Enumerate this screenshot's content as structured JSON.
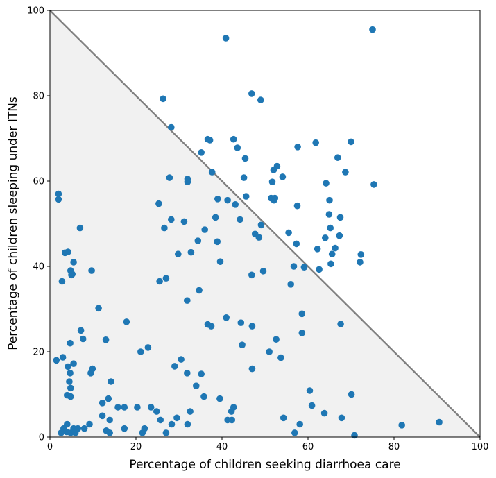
{
  "chart_data": {
    "type": "scatter",
    "title": "",
    "xlabel": "Percentage of children seeking diarrhoea care",
    "ylabel": "Percentage of children sleeping under ITNs",
    "xlim": [
      0,
      100
    ],
    "ylim": [
      0,
      100
    ],
    "xticks": [
      "0",
      "20",
      "40",
      "60",
      "80",
      "100"
    ],
    "yticks": [
      "0",
      "20",
      "40",
      "60",
      "80",
      "100"
    ],
    "grid": false,
    "legend": "none",
    "reference_line": {
      "from": [
        0,
        100
      ],
      "to": [
        100,
        0
      ],
      "color": "#808080"
    },
    "shaded_region": {
      "vertices": [
        [
          0,
          0
        ],
        [
          0,
          100
        ],
        [
          100,
          0
        ]
      ],
      "color": "#f1f1f1"
    },
    "marker_color": "#1f77b4",
    "points": [
      [
        1.5,
        18
      ],
      [
        2,
        57
      ],
      [
        2,
        55.7
      ],
      [
        2.6,
        1
      ],
      [
        2.8,
        36.5
      ],
      [
        3,
        18.7
      ],
      [
        3.2,
        2
      ],
      [
        3.5,
        43.2
      ],
      [
        3.9,
        1.2
      ],
      [
        4,
        3
      ],
      [
        4,
        9.8
      ],
      [
        4.2,
        16.5
      ],
      [
        4.2,
        43.4
      ],
      [
        4.5,
        13
      ],
      [
        4.7,
        22
      ],
      [
        4.7,
        15
      ],
      [
        4.8,
        11.5
      ],
      [
        4.8,
        9.5
      ],
      [
        4.8,
        1
      ],
      [
        4.8,
        39
      ],
      [
        5,
        38
      ],
      [
        5.2,
        38.2
      ],
      [
        5.5,
        41
      ],
      [
        5.5,
        17.2
      ],
      [
        5.5,
        2
      ],
      [
        5.9,
        1
      ],
      [
        6,
        1.5
      ],
      [
        6.5,
        2
      ],
      [
        7,
        49
      ],
      [
        7.2,
        25
      ],
      [
        7.7,
        23
      ],
      [
        8,
        2
      ],
      [
        9.2,
        3
      ],
      [
        9.5,
        15
      ],
      [
        9.7,
        39
      ],
      [
        9.9,
        16
      ],
      [
        11.3,
        30.2
      ],
      [
        12.2,
        5
      ],
      [
        12.2,
        8
      ],
      [
        13,
        22.8
      ],
      [
        13.1,
        1.5
      ],
      [
        13.6,
        9
      ],
      [
        13.9,
        4
      ],
      [
        13.9,
        1
      ],
      [
        14.2,
        13
      ],
      [
        15.8,
        7
      ],
      [
        17.3,
        2
      ],
      [
        17.3,
        7
      ],
      [
        17.8,
        27
      ],
      [
        20.3,
        7
      ],
      [
        21.1,
        20
      ],
      [
        21.5,
        1
      ],
      [
        22,
        2
      ],
      [
        22.8,
        21
      ],
      [
        23.5,
        7
      ],
      [
        24.8,
        6
      ],
      [
        25.3,
        54.7
      ],
      [
        25.5,
        36.5
      ],
      [
        25.7,
        4
      ],
      [
        26.3,
        79.3
      ],
      [
        26.6,
        49
      ],
      [
        27,
        37.2
      ],
      [
        27,
        1
      ],
      [
        27.8,
        60.8
      ],
      [
        28.2,
        72.6
      ],
      [
        28.2,
        51
      ],
      [
        28.3,
        3
      ],
      [
        29,
        16.6
      ],
      [
        29.5,
        4.5
      ],
      [
        29.8,
        42.9
      ],
      [
        30.5,
        18.2
      ],
      [
        31.2,
        50.5
      ],
      [
        31.9,
        32
      ],
      [
        31.9,
        15
      ],
      [
        32,
        3
      ],
      [
        32,
        60.5
      ],
      [
        32,
        59.8
      ],
      [
        32.6,
        6
      ],
      [
        32.8,
        43.3
      ],
      [
        34,
        12
      ],
      [
        34.4,
        46
      ],
      [
        34.7,
        34.4
      ],
      [
        35.2,
        66.7
      ],
      [
        35.2,
        14.8
      ],
      [
        35.8,
        9.5
      ],
      [
        36,
        48.6
      ],
      [
        36.7,
        69.8
      ],
      [
        36.7,
        26.4
      ],
      [
        37.2,
        69.6
      ],
      [
        37.5,
        26
      ],
      [
        37.7,
        62.1
      ],
      [
        38.5,
        51.5
      ],
      [
        38.9,
        45.8
      ],
      [
        39,
        55.8
      ],
      [
        39.5,
        9
      ],
      [
        39.6,
        41.1
      ],
      [
        40.9,
        93.5
      ],
      [
        41,
        28
      ],
      [
        41.3,
        55.5
      ],
      [
        41.3,
        4
      ],
      [
        42.2,
        6
      ],
      [
        42.3,
        4
      ],
      [
        42.7,
        69.8
      ],
      [
        42.7,
        7
      ],
      [
        43.1,
        54.5
      ],
      [
        43.6,
        67.8
      ],
      [
        44.2,
        51
      ],
      [
        44.4,
        26.8
      ],
      [
        44.7,
        21.6
      ],
      [
        45.1,
        60.8
      ],
      [
        45.4,
        65.3
      ],
      [
        45.6,
        56.4
      ],
      [
        46.9,
        38
      ],
      [
        46.9,
        80.5
      ],
      [
        47,
        16
      ],
      [
        47,
        26
      ],
      [
        47.7,
        47.6
      ],
      [
        48.6,
        46.8
      ],
      [
        49,
        79
      ],
      [
        49.1,
        49.7
      ],
      [
        49.6,
        38.9
      ],
      [
        51,
        20
      ],
      [
        51.4,
        56
      ],
      [
        51.7,
        59.8
      ],
      [
        52,
        62.6
      ],
      [
        52.1,
        55.5
      ],
      [
        52.3,
        56
      ],
      [
        52.6,
        22.9
      ],
      [
        52.8,
        63.5
      ],
      [
        53.7,
        18.6
      ],
      [
        54.1,
        61
      ],
      [
        54.3,
        4.5
      ],
      [
        55.5,
        47.9
      ],
      [
        56,
        35.8
      ],
      [
        56.7,
        40
      ],
      [
        56.9,
        1
      ],
      [
        57.3,
        45.3
      ],
      [
        57.5,
        54.2
      ],
      [
        57.6,
        68
      ],
      [
        58.1,
        3
      ],
      [
        58.6,
        28.9
      ],
      [
        58.6,
        24.4
      ],
      [
        59.1,
        39.8
      ],
      [
        60.4,
        10.9
      ],
      [
        60.9,
        7.4
      ],
      [
        61.8,
        69
      ],
      [
        62.2,
        44.1
      ],
      [
        62.6,
        39.3
      ],
      [
        63.8,
        5.6
      ],
      [
        64,
        46.7
      ],
      [
        64.2,
        59.5
      ],
      [
        64.9,
        52.2
      ],
      [
        65,
        55.5
      ],
      [
        65.2,
        49
      ],
      [
        65.3,
        40.6
      ],
      [
        65.6,
        42.9
      ],
      [
        66.3,
        44.3
      ],
      [
        66.9,
        65.5
      ],
      [
        67.3,
        47.2
      ],
      [
        67.5,
        51.5
      ],
      [
        67.6,
        26.5
      ],
      [
        67.8,
        4.5
      ],
      [
        68.7,
        62.1
      ],
      [
        70,
        69.2
      ],
      [
        70.1,
        10
      ],
      [
        70.8,
        0.4
      ],
      [
        72.1,
        41
      ],
      [
        72.3,
        42.8
      ],
      [
        75,
        95.5
      ],
      [
        75.3,
        59.2
      ],
      [
        81.8,
        2.8
      ],
      [
        90.5,
        3.5
      ]
    ]
  }
}
